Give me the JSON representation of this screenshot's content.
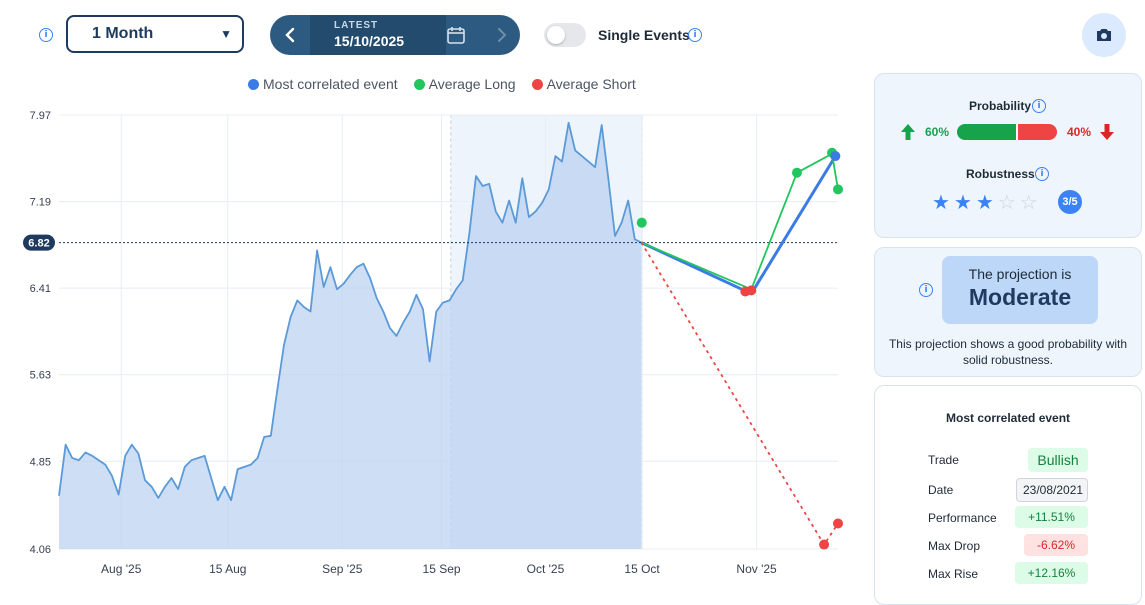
{
  "toolbar": {
    "period": "1 Month",
    "date_label": "LATEST",
    "date_value": "15/10/2025",
    "single_events_label": "Single Events",
    "single_events_enabled": false
  },
  "legend": [
    {
      "label": "Most correlated event",
      "color": "#3b7be6"
    },
    {
      "label": "Average Long",
      "color": "#22c55e"
    },
    {
      "label": "Average Short",
      "color": "#ef4444"
    }
  ],
  "chart_data": {
    "type": "area",
    "y_ticks": [
      "7.97",
      "7.19",
      "6.41",
      "5.63",
      "4.85",
      "4.06"
    ],
    "ylim": [
      4.06,
      7.97
    ],
    "x_ticks": [
      "Aug '25",
      "15 Aug",
      "Sep '25",
      "15 Sep",
      "Oct '25",
      "15 Oct",
      "Nov '25"
    ],
    "current_value": "6.82",
    "grid": true,
    "highlight_range": [
      "15 Sep",
      "15 Oct"
    ],
    "history": [
      {
        "x": 0,
        "y": 4.54
      },
      {
        "x": 1,
        "y": 5.0
      },
      {
        "x": 2,
        "y": 4.88
      },
      {
        "x": 3,
        "y": 4.86
      },
      {
        "x": 4,
        "y": 4.93
      },
      {
        "x": 5,
        "y": 4.9
      },
      {
        "x": 6,
        "y": 4.86
      },
      {
        "x": 7,
        "y": 4.82
      },
      {
        "x": 8,
        "y": 4.72
      },
      {
        "x": 9,
        "y": 4.55
      },
      {
        "x": 10,
        "y": 4.9
      },
      {
        "x": 11,
        "y": 5.0
      },
      {
        "x": 12,
        "y": 4.92
      },
      {
        "x": 13,
        "y": 4.68
      },
      {
        "x": 14,
        "y": 4.62
      },
      {
        "x": 15,
        "y": 4.52
      },
      {
        "x": 16,
        "y": 4.62
      },
      {
        "x": 17,
        "y": 4.7
      },
      {
        "x": 18,
        "y": 4.6
      },
      {
        "x": 19,
        "y": 4.8
      },
      {
        "x": 20,
        "y": 4.86
      },
      {
        "x": 21,
        "y": 4.88
      },
      {
        "x": 22,
        "y": 4.9
      },
      {
        "x": 23,
        "y": 4.7
      },
      {
        "x": 24,
        "y": 4.5
      },
      {
        "x": 25,
        "y": 4.62
      },
      {
        "x": 26,
        "y": 4.5
      },
      {
        "x": 27,
        "y": 4.78
      },
      {
        "x": 28,
        "y": 4.8
      },
      {
        "x": 29,
        "y": 4.82
      },
      {
        "x": 30,
        "y": 4.88
      },
      {
        "x": 31,
        "y": 5.07
      },
      {
        "x": 32,
        "y": 5.08
      },
      {
        "x": 33,
        "y": 5.5
      },
      {
        "x": 34,
        "y": 5.9
      },
      {
        "x": 35,
        "y": 6.15
      },
      {
        "x": 36,
        "y": 6.3
      },
      {
        "x": 37,
        "y": 6.24
      },
      {
        "x": 38,
        "y": 6.2
      },
      {
        "x": 39,
        "y": 6.75
      },
      {
        "x": 40,
        "y": 6.42
      },
      {
        "x": 41,
        "y": 6.6
      },
      {
        "x": 42,
        "y": 6.4
      },
      {
        "x": 43,
        "y": 6.45
      },
      {
        "x": 44,
        "y": 6.53
      },
      {
        "x": 45,
        "y": 6.6
      },
      {
        "x": 46,
        "y": 6.63
      },
      {
        "x": 47,
        "y": 6.5
      },
      {
        "x": 48,
        "y": 6.32
      },
      {
        "x": 49,
        "y": 6.2
      },
      {
        "x": 50,
        "y": 6.05
      },
      {
        "x": 51,
        "y": 5.98
      },
      {
        "x": 52,
        "y": 6.1
      },
      {
        "x": 53,
        "y": 6.2
      },
      {
        "x": 54,
        "y": 6.35
      },
      {
        "x": 55,
        "y": 6.22
      },
      {
        "x": 56,
        "y": 5.75
      },
      {
        "x": 57,
        "y": 6.2
      },
      {
        "x": 58,
        "y": 6.28
      },
      {
        "x": 59,
        "y": 6.3
      },
      {
        "x": 60,
        "y": 6.4
      },
      {
        "x": 61,
        "y": 6.48
      },
      {
        "x": 62,
        "y": 6.9
      },
      {
        "x": 63,
        "y": 7.42
      },
      {
        "x": 64,
        "y": 7.33
      },
      {
        "x": 65,
        "y": 7.35
      },
      {
        "x": 66,
        "y": 7.1
      },
      {
        "x": 67,
        "y": 7.0
      },
      {
        "x": 68,
        "y": 7.2
      },
      {
        "x": 69,
        "y": 7.0
      },
      {
        "x": 70,
        "y": 7.4
      },
      {
        "x": 71,
        "y": 7.05
      },
      {
        "x": 72,
        "y": 7.1
      },
      {
        "x": 73,
        "y": 7.18
      },
      {
        "x": 74,
        "y": 7.3
      },
      {
        "x": 75,
        "y": 7.6
      },
      {
        "x": 76,
        "y": 7.55
      },
      {
        "x": 77,
        "y": 7.9
      },
      {
        "x": 78,
        "y": 7.65
      },
      {
        "x": 79,
        "y": 7.6
      },
      {
        "x": 80,
        "y": 7.55
      },
      {
        "x": 81,
        "y": 7.5
      },
      {
        "x": 82,
        "y": 7.88
      },
      {
        "x": 83,
        "y": 7.4
      },
      {
        "x": 84,
        "y": 6.88
      },
      {
        "x": 85,
        "y": 7.0
      },
      {
        "x": 86,
        "y": 7.2
      },
      {
        "x": 87,
        "y": 6.85
      },
      {
        "x": 88,
        "y": 6.82
      }
    ],
    "history_ticks": [
      {
        "label": "Aug '25",
        "x": 9.4
      },
      {
        "label": "15 Aug",
        "x": 25.5
      },
      {
        "label": "Sep '25",
        "x": 42.8
      },
      {
        "label": "15 Sep",
        "x": 57.8
      },
      {
        "label": "Oct '25",
        "x": 73.5
      },
      {
        "label": "15 Oct",
        "x": 88.1
      },
      {
        "label": "Nov '25",
        "x": 105.4
      }
    ],
    "x_range": [
      0,
      117.7
    ],
    "highlight_x": [
      59.2,
      88.1
    ],
    "series": [
      {
        "name": "Most correlated event",
        "color": "#3b7be6",
        "points": [
          {
            "x": 88,
            "y": 6.82
          },
          {
            "x": 104.6,
            "y": 6.36
          },
          {
            "x": 117.3,
            "y": 7.6
          }
        ]
      },
      {
        "name": "Average Long",
        "color": "#22c55e",
        "points": [
          {
            "x": 88,
            "y": 6.82
          },
          {
            "x": 104.6,
            "y": 6.4
          },
          {
            "x": 111.5,
            "y": 7.45
          },
          {
            "x": 116.8,
            "y": 7.62
          },
          {
            "x": 117.7,
            "y": 7.3
          }
        ]
      },
      {
        "name": "Average Short",
        "color": "#ef4444",
        "dashed": true,
        "points": [
          {
            "x": 88,
            "y": 6.82
          },
          {
            "x": 115.6,
            "y": 4.1
          },
          {
            "x": 117.7,
            "y": 4.29
          }
        ]
      }
    ],
    "markers": [
      {
        "series": "Average Long",
        "color": "#22c55e",
        "x": 88.05,
        "y": 7.0
      },
      {
        "series": "Average Short",
        "color": "#ef4444",
        "x": 103.7,
        "y": 6.38
      },
      {
        "series": "Average Short",
        "color": "#ef4444",
        "x": 104.6,
        "y": 6.39
      },
      {
        "series": "Average Long",
        "color": "#22c55e",
        "x": 111.5,
        "y": 7.45
      },
      {
        "series": "Average Long",
        "color": "#22c55e",
        "x": 116.8,
        "y": 7.63
      },
      {
        "series": "Most correlated event",
        "color": "#3b7be6",
        "x": 117.3,
        "y": 7.6
      },
      {
        "series": "Average Long",
        "color": "#22c55e",
        "x": 117.7,
        "y": 7.3
      },
      {
        "series": "Average Short",
        "color": "#ef4444",
        "x": 115.6,
        "y": 4.1
      },
      {
        "series": "Average Short",
        "color": "#ef4444",
        "x": 117.7,
        "y": 4.29
      }
    ]
  },
  "probability": {
    "title": "Probability",
    "up_pct": "60%",
    "down_pct": "40%",
    "up_fraction": 0.6,
    "up_color": "#16a34a",
    "down_color": "#ef4444"
  },
  "robustness": {
    "title": "Robustness",
    "stars_filled": 3,
    "stars_total": 5,
    "badge": "3/5"
  },
  "projection": {
    "subtitle": "The projection is",
    "value": "Moderate",
    "description": "This projection shows a good probability with solid robustness."
  },
  "event": {
    "title": "Most correlated event",
    "rows": [
      {
        "label": "Trade",
        "value": "Bullish",
        "tone": "green"
      },
      {
        "label": "Date",
        "value": "23/08/2021",
        "tone": "neutral"
      },
      {
        "label": "Performance",
        "value": "+11.51%",
        "tone": "green"
      },
      {
        "label": "Max Drop",
        "value": "-6.62%",
        "tone": "red"
      },
      {
        "label": "Max Rise",
        "value": "+12.16%",
        "tone": "green"
      }
    ]
  }
}
